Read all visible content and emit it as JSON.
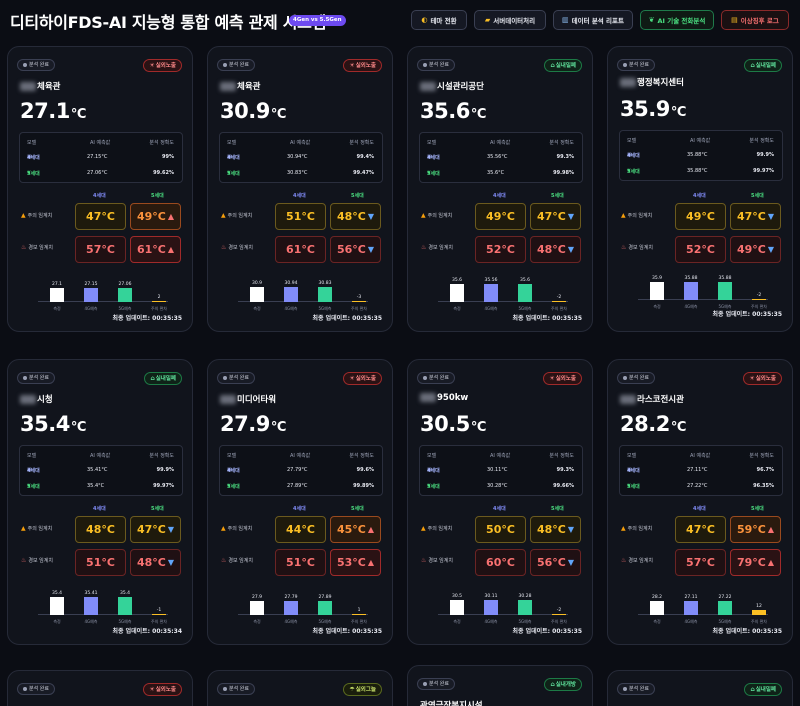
{
  "header": {
    "title": "디티하이FDS-AI 지능형 통합 예측 관제 시스템",
    "version_badge": "4Gen vs 5.5Gen",
    "buttons": {
      "theme": "테마 전환",
      "server": "서버데이터처리",
      "report": "데이터 분석 리포트",
      "ai": "AI 기술 전화분석",
      "anomaly": "이상징후 로그"
    },
    "icons": {
      "theme": "half-moon-icon",
      "server": "folder-icon",
      "report": "bar-chart-icon",
      "ai": "sprout-icon",
      "anomaly": "scroll-icon"
    }
  },
  "labels": {
    "status": "분석 완료",
    "col_model": "모델",
    "col_pred": "AI 예측값",
    "col_acc": "분석 정확도",
    "gen4": "4세대",
    "gen5": "5세대",
    "caution": "주의 임계치",
    "alarm": "경보 임계치",
    "bar_actual": "측정",
    "bar_gen4": "4G예측",
    "bar_gen5": "5G예측",
    "bar_diff": "주의 편차",
    "updated_prefix": "최종 업데이트: "
  },
  "colors": {
    "outdoor": "#ff8a8a",
    "indoor": "#5ee09a",
    "gen4": "#818cf8",
    "gen5": "#34d399",
    "danger": "#f87171",
    "warning": "#fbbf24"
  },
  "cards": [
    {
      "name": "체육관",
      "location": "실외노출",
      "temp": "27.1",
      "gen4_pred": "27.15°C",
      "gen4_acc": "99%",
      "gen5_pred": "27.06°C",
      "gen5_acc": "99.62%",
      "caution4": "47°C",
      "caution5": "49°C",
      "alarm4": "57°C",
      "alarm5": "61°C",
      "caution5_dir": "up",
      "alarm5_dir": "up",
      "bars": [
        27.1,
        27.15,
        27.06,
        2
      ],
      "bar_labels": [
        "27.1",
        "27.15",
        "27.06",
        "2"
      ],
      "updated": "00:35:35"
    },
    {
      "name": "체육관",
      "location": "실외노출",
      "temp": "30.9",
      "gen4_pred": "30.94°C",
      "gen4_acc": "99.4%",
      "gen5_pred": "30.83°C",
      "gen5_acc": "99.47%",
      "caution4": "51°C",
      "caution5": "48°C",
      "alarm4": "61°C",
      "alarm5": "56°C",
      "caution5_dir": "down",
      "alarm5_dir": "down",
      "bars": [
        30.9,
        30.94,
        30.83,
        -3
      ],
      "bar_labels": [
        "30.9",
        "30.94",
        "30.83",
        "-3"
      ],
      "updated": "00:35:35"
    },
    {
      "name": "시설관리공단",
      "location": "실내밀폐",
      "temp": "35.6",
      "gen4_pred": "35.56°C",
      "gen4_acc": "99.3%",
      "gen5_pred": "35.6°C",
      "gen5_acc": "99.98%",
      "caution4": "49°C",
      "caution5": "47°C",
      "alarm4": "52°C",
      "alarm5": "48°C",
      "caution5_dir": "down",
      "alarm5_dir": "down",
      "bars": [
        35.6,
        35.56,
        35.6,
        -2
      ],
      "bar_labels": [
        "35.6",
        "35.56",
        "35.6",
        "-2"
      ],
      "updated": "00:35:35"
    },
    {
      "name": "행정복지센터",
      "location": "실내밀폐",
      "temp": "35.9",
      "gen4_pred": "35.88°C",
      "gen4_acc": "99.9%",
      "gen5_pred": "35.88°C",
      "gen5_acc": "99.97%",
      "caution4": "49°C",
      "caution5": "47°C",
      "alarm4": "52°C",
      "alarm5": "49°C",
      "caution5_dir": "down",
      "alarm5_dir": "down",
      "bars": [
        35.9,
        35.88,
        35.88,
        -2
      ],
      "bar_labels": [
        "35.9",
        "35.88",
        "35.88",
        "-2"
      ],
      "updated": "00:35:35"
    },
    {
      "name": "시청",
      "location": "실내밀폐",
      "temp": "35.4",
      "gen4_pred": "35.41°C",
      "gen4_acc": "99.9%",
      "gen5_pred": "35.4°C",
      "gen5_acc": "99.97%",
      "caution4": "48°C",
      "caution5": "47°C",
      "alarm4": "51°C",
      "alarm5": "48°C",
      "caution5_dir": "down",
      "alarm5_dir": "down",
      "bars": [
        35.4,
        35.41,
        35.4,
        -1
      ],
      "bar_labels": [
        "35.4",
        "35.41",
        "35.4",
        "-1"
      ],
      "updated": "00:35:34"
    },
    {
      "name": "미디어타워",
      "location": "실외노출",
      "temp": "27.9",
      "gen4_pred": "27.79°C",
      "gen4_acc": "99.6%",
      "gen5_pred": "27.89°C",
      "gen5_acc": "99.89%",
      "caution4": "44°C",
      "caution5": "45°C",
      "alarm4": "51°C",
      "alarm5": "53°C",
      "caution5_dir": "up",
      "alarm5_dir": "up",
      "bars": [
        27.9,
        27.79,
        27.89,
        1
      ],
      "bar_labels": [
        "27.9",
        "27.79",
        "27.89",
        "1"
      ],
      "updated": "00:35:35"
    },
    {
      "name": "950kw",
      "location": "실외노출",
      "temp": "30.5",
      "gen4_pred": "30.11°C",
      "gen4_acc": "99.3%",
      "gen5_pred": "30.28°C",
      "gen5_acc": "99.66%",
      "caution4": "50°C",
      "caution5": "48°C",
      "alarm4": "60°C",
      "alarm5": "56°C",
      "caution5_dir": "down",
      "alarm5_dir": "down",
      "bars": [
        30.5,
        30.11,
        30.28,
        -2
      ],
      "bar_labels": [
        "30.5",
        "30.11",
        "30.28",
        "-2"
      ],
      "updated": "00:35:35"
    },
    {
      "name": "라스코전시관",
      "location": "실외노출",
      "temp": "28.2",
      "gen4_pred": "27.11°C",
      "gen4_acc": "96.7%",
      "gen5_pred": "27.22°C",
      "gen5_acc": "96.35%",
      "caution4": "47°C",
      "caution5": "59°C",
      "alarm4": "57°C",
      "alarm5": "79°C",
      "caution5_dir": "up",
      "alarm5_dir": "up",
      "bars": [
        28.2,
        27.11,
        27.22,
        12
      ],
      "bar_labels": [
        "28.2",
        "27.11",
        "27.22",
        "12"
      ],
      "updated": "00:35:35"
    }
  ],
  "partial_cards": [
    {
      "location": "실외노출"
    },
    {
      "location": "실외그늘"
    },
    {
      "location": "실내개방",
      "name": "관영극장복지시설"
    },
    {
      "location": "실내밀폐"
    }
  ]
}
